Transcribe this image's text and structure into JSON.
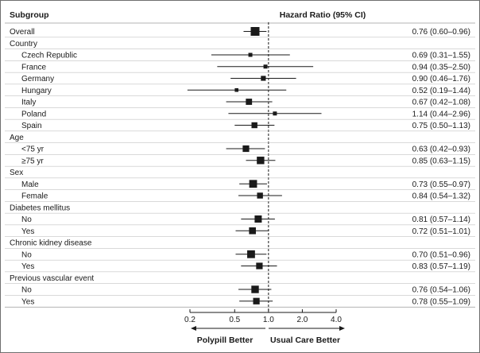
{
  "chart_data": {
    "type": "forest",
    "headers": {
      "subgroup": "Subgroup",
      "effect": "Hazard Ratio (95% CI)"
    },
    "x_scale": "log",
    "xlim": [
      0.2,
      4.0
    ],
    "reference_line": 1.0,
    "ticks": [
      {
        "value": 0.2,
        "label": "0.2"
      },
      {
        "value": 0.5,
        "label": "0.5"
      },
      {
        "value": 1.0,
        "label": "1.0"
      },
      {
        "value": 2.0,
        "label": "2.0"
      },
      {
        "value": 4.0,
        "label": "4.0"
      }
    ],
    "favors_left": "Polypill Better",
    "favors_right": "Usual Care Better",
    "rows": [
      {
        "label": "Overall",
        "type": "data",
        "indent": 0,
        "hr": 0.76,
        "lo": 0.6,
        "hi": 0.96,
        "text": "0.76 (0.60–0.96)",
        "weight": 1.0
      },
      {
        "label": "Country",
        "type": "group"
      },
      {
        "label": "Czech Republic",
        "type": "data",
        "indent": 1,
        "hr": 0.69,
        "lo": 0.31,
        "hi": 1.55,
        "text": "0.69 (0.31–1.55)",
        "weight": 0.25
      },
      {
        "label": "France",
        "type": "data",
        "indent": 1,
        "hr": 0.94,
        "lo": 0.35,
        "hi": 2.5,
        "text": "0.94 (0.35–2.50)",
        "weight": 0.25
      },
      {
        "label": "Germany",
        "type": "data",
        "indent": 1,
        "hr": 0.9,
        "lo": 0.46,
        "hi": 1.76,
        "text": "0.90 (0.46–1.76)",
        "weight": 0.4
      },
      {
        "label": "Hungary",
        "type": "data",
        "indent": 1,
        "hr": 0.52,
        "lo": 0.19,
        "hi": 1.44,
        "text": "0.52 (0.19–1.44)",
        "weight": 0.2
      },
      {
        "label": "Italy",
        "type": "data",
        "indent": 1,
        "hr": 0.67,
        "lo": 0.42,
        "hi": 1.08,
        "text": "0.67 (0.42–1.08)",
        "weight": 0.6
      },
      {
        "label": "Poland",
        "type": "data",
        "indent": 1,
        "hr": 1.14,
        "lo": 0.44,
        "hi": 2.96,
        "text": "1.14 (0.44–2.96)",
        "weight": 0.25
      },
      {
        "label": "Spain",
        "type": "data",
        "indent": 1,
        "hr": 0.75,
        "lo": 0.5,
        "hi": 1.13,
        "text": "0.75 (0.50–1.13)",
        "weight": 0.55
      },
      {
        "label": "Age",
        "type": "group"
      },
      {
        "label": "<75 yr",
        "type": "data",
        "indent": 1,
        "hr": 0.63,
        "lo": 0.42,
        "hi": 0.93,
        "text": "0.63 (0.42–0.93)",
        "weight": 0.65
      },
      {
        "label": "≥75 yr",
        "type": "data",
        "indent": 1,
        "hr": 0.85,
        "lo": 0.63,
        "hi": 1.15,
        "text": "0.85 (0.63–1.15)",
        "weight": 0.8
      },
      {
        "label": "Sex",
        "type": "group"
      },
      {
        "label": "Male",
        "type": "data",
        "indent": 1,
        "hr": 0.73,
        "lo": 0.55,
        "hi": 0.97,
        "text": "0.73 (0.55–0.97)",
        "weight": 0.85
      },
      {
        "label": "Female",
        "type": "data",
        "indent": 1,
        "hr": 0.84,
        "lo": 0.54,
        "hi": 1.32,
        "text": "0.84 (0.54–1.32)",
        "weight": 0.55
      },
      {
        "label": "Diabetes mellitus",
        "type": "group"
      },
      {
        "label": "No",
        "type": "data",
        "indent": 1,
        "hr": 0.81,
        "lo": 0.57,
        "hi": 1.14,
        "text": "0.81 (0.57–1.14)",
        "weight": 0.75
      },
      {
        "label": "Yes",
        "type": "data",
        "indent": 1,
        "hr": 0.72,
        "lo": 0.51,
        "hi": 1.01,
        "text": "0.72 (0.51–1.01)",
        "weight": 0.7
      },
      {
        "label": "Chronic kidney disease",
        "type": "group"
      },
      {
        "label": "No",
        "type": "data",
        "indent": 1,
        "hr": 0.7,
        "lo": 0.51,
        "hi": 0.96,
        "text": "0.70 (0.51–0.96)",
        "weight": 0.85
      },
      {
        "label": "Yes",
        "type": "data",
        "indent": 1,
        "hr": 0.83,
        "lo": 0.57,
        "hi": 1.19,
        "text": "0.83 (0.57–1.19)",
        "weight": 0.65
      },
      {
        "label": "Previous vascular event",
        "type": "group"
      },
      {
        "label": "No",
        "type": "data",
        "indent": 1,
        "hr": 0.76,
        "lo": 0.54,
        "hi": 1.06,
        "text": "0.76 (0.54–1.06)",
        "weight": 0.8
      },
      {
        "label": "Yes",
        "type": "data",
        "indent": 1,
        "hr": 0.78,
        "lo": 0.55,
        "hi": 1.09,
        "text": "0.78 (0.55–1.09)",
        "weight": 0.65
      }
    ]
  }
}
